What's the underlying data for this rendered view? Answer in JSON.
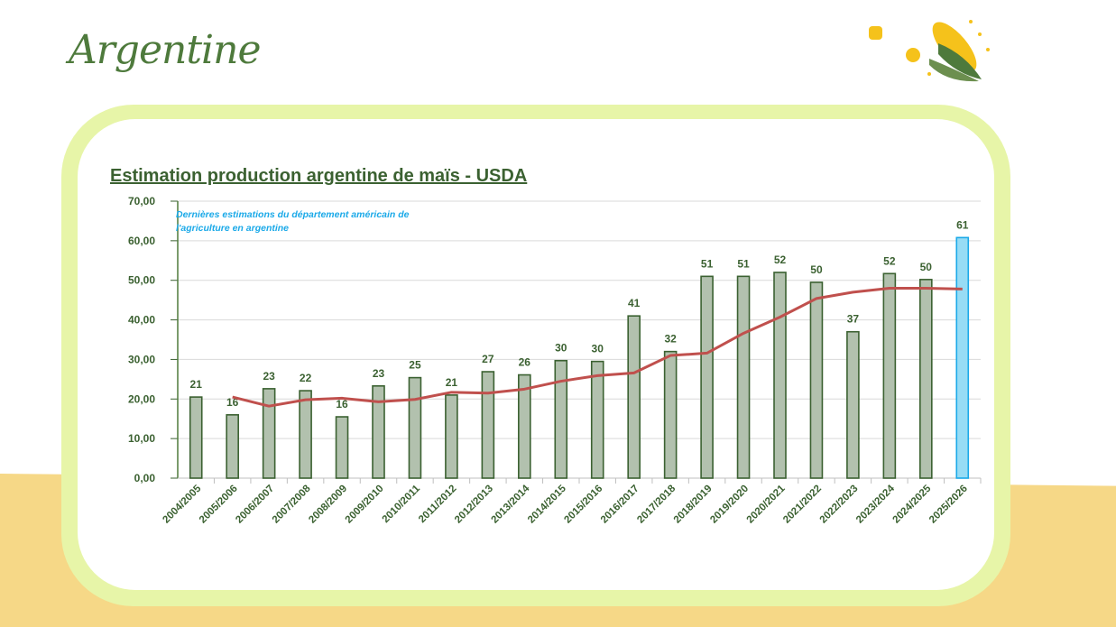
{
  "page": {
    "title": "Argentine"
  },
  "chart_data": {
    "type": "bar",
    "title": "Estimation production argentine de maïs - USDA",
    "annotation": "Dernières estimations du département américain de l'agriculture en argentine",
    "xlabel": "",
    "ylabel": "",
    "ylim": [
      0,
      70
    ],
    "yticks": [
      "0,00",
      "10,00",
      "20,00",
      "30,00",
      "40,00",
      "50,00",
      "60,00",
      "70,00"
    ],
    "grid": true,
    "categories": [
      "2004/2005",
      "2005/2006",
      "2006/2007",
      "2007/2008",
      "2008/2009",
      "2009/2010",
      "2010/2011",
      "2011/2012",
      "2012/2013",
      "2013/2014",
      "2014/2015",
      "2015/2016",
      "2016/2017",
      "2017/2018",
      "2018/2019",
      "2019/2020",
      "2020/2021",
      "2021/2022",
      "2022/2023",
      "2023/2024",
      "2024/2025",
      "2025/2026"
    ],
    "series": [
      {
        "type": "bar",
        "values": [
          20.5,
          16,
          22.6,
          22.1,
          15.5,
          23.3,
          25.4,
          21,
          26.9,
          26.1,
          29.7,
          29.5,
          41,
          32,
          51,
          51,
          52,
          49.5,
          37,
          51.7,
          50.2,
          60.8
        ],
        "labels": [
          "21",
          "16",
          "23",
          "22",
          "16",
          "23",
          "25",
          "21",
          "27",
          "26",
          "30",
          "30",
          "41",
          "32",
          "51",
          "51",
          "52",
          "50",
          "37",
          "52",
          "50",
          "61"
        ],
        "color": "#b2c1ae",
        "stroke": "#3b6131",
        "highlight_color": "#97dcf5",
        "highlight_stroke": "#1aa9e8",
        "highlight_index": 21
      },
      {
        "type": "line",
        "values": [
          null,
          20.5,
          18.2,
          19.8,
          20.2,
          19.3,
          19.9,
          21.7,
          21.5,
          22.5,
          24.5,
          25.9,
          26.6,
          31,
          31.6,
          36.6,
          40.7,
          45.4,
          47,
          48,
          48,
          47.8
        ],
        "color": "#c0504d"
      }
    ]
  },
  "colors": {
    "title": "#3b6131",
    "accent": "#e7f5a8",
    "band": "#f6d887"
  },
  "icons": [
    "corn-icon"
  ]
}
